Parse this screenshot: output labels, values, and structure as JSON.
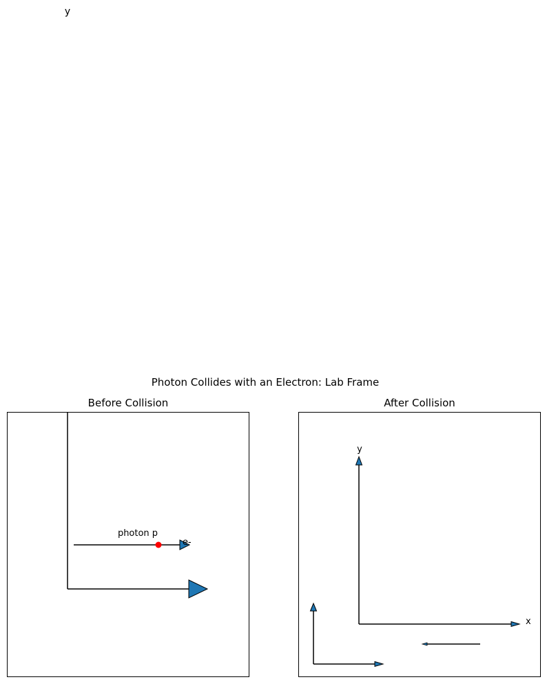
{
  "figure": {
    "suptitle": "Photon Collides with an Electron: Lab Frame",
    "stray_axis_label": "y"
  },
  "panels": {
    "before": {
      "title": "Before Collision",
      "photon_label": "photon p",
      "electron_label": "e-"
    },
    "after": {
      "title": "After Collision",
      "x_label": "x",
      "y_label": "y"
    }
  },
  "colors": {
    "arrow_fill": "#1f77b4",
    "electron_dot": "#ff0000",
    "line": "#000000"
  }
}
